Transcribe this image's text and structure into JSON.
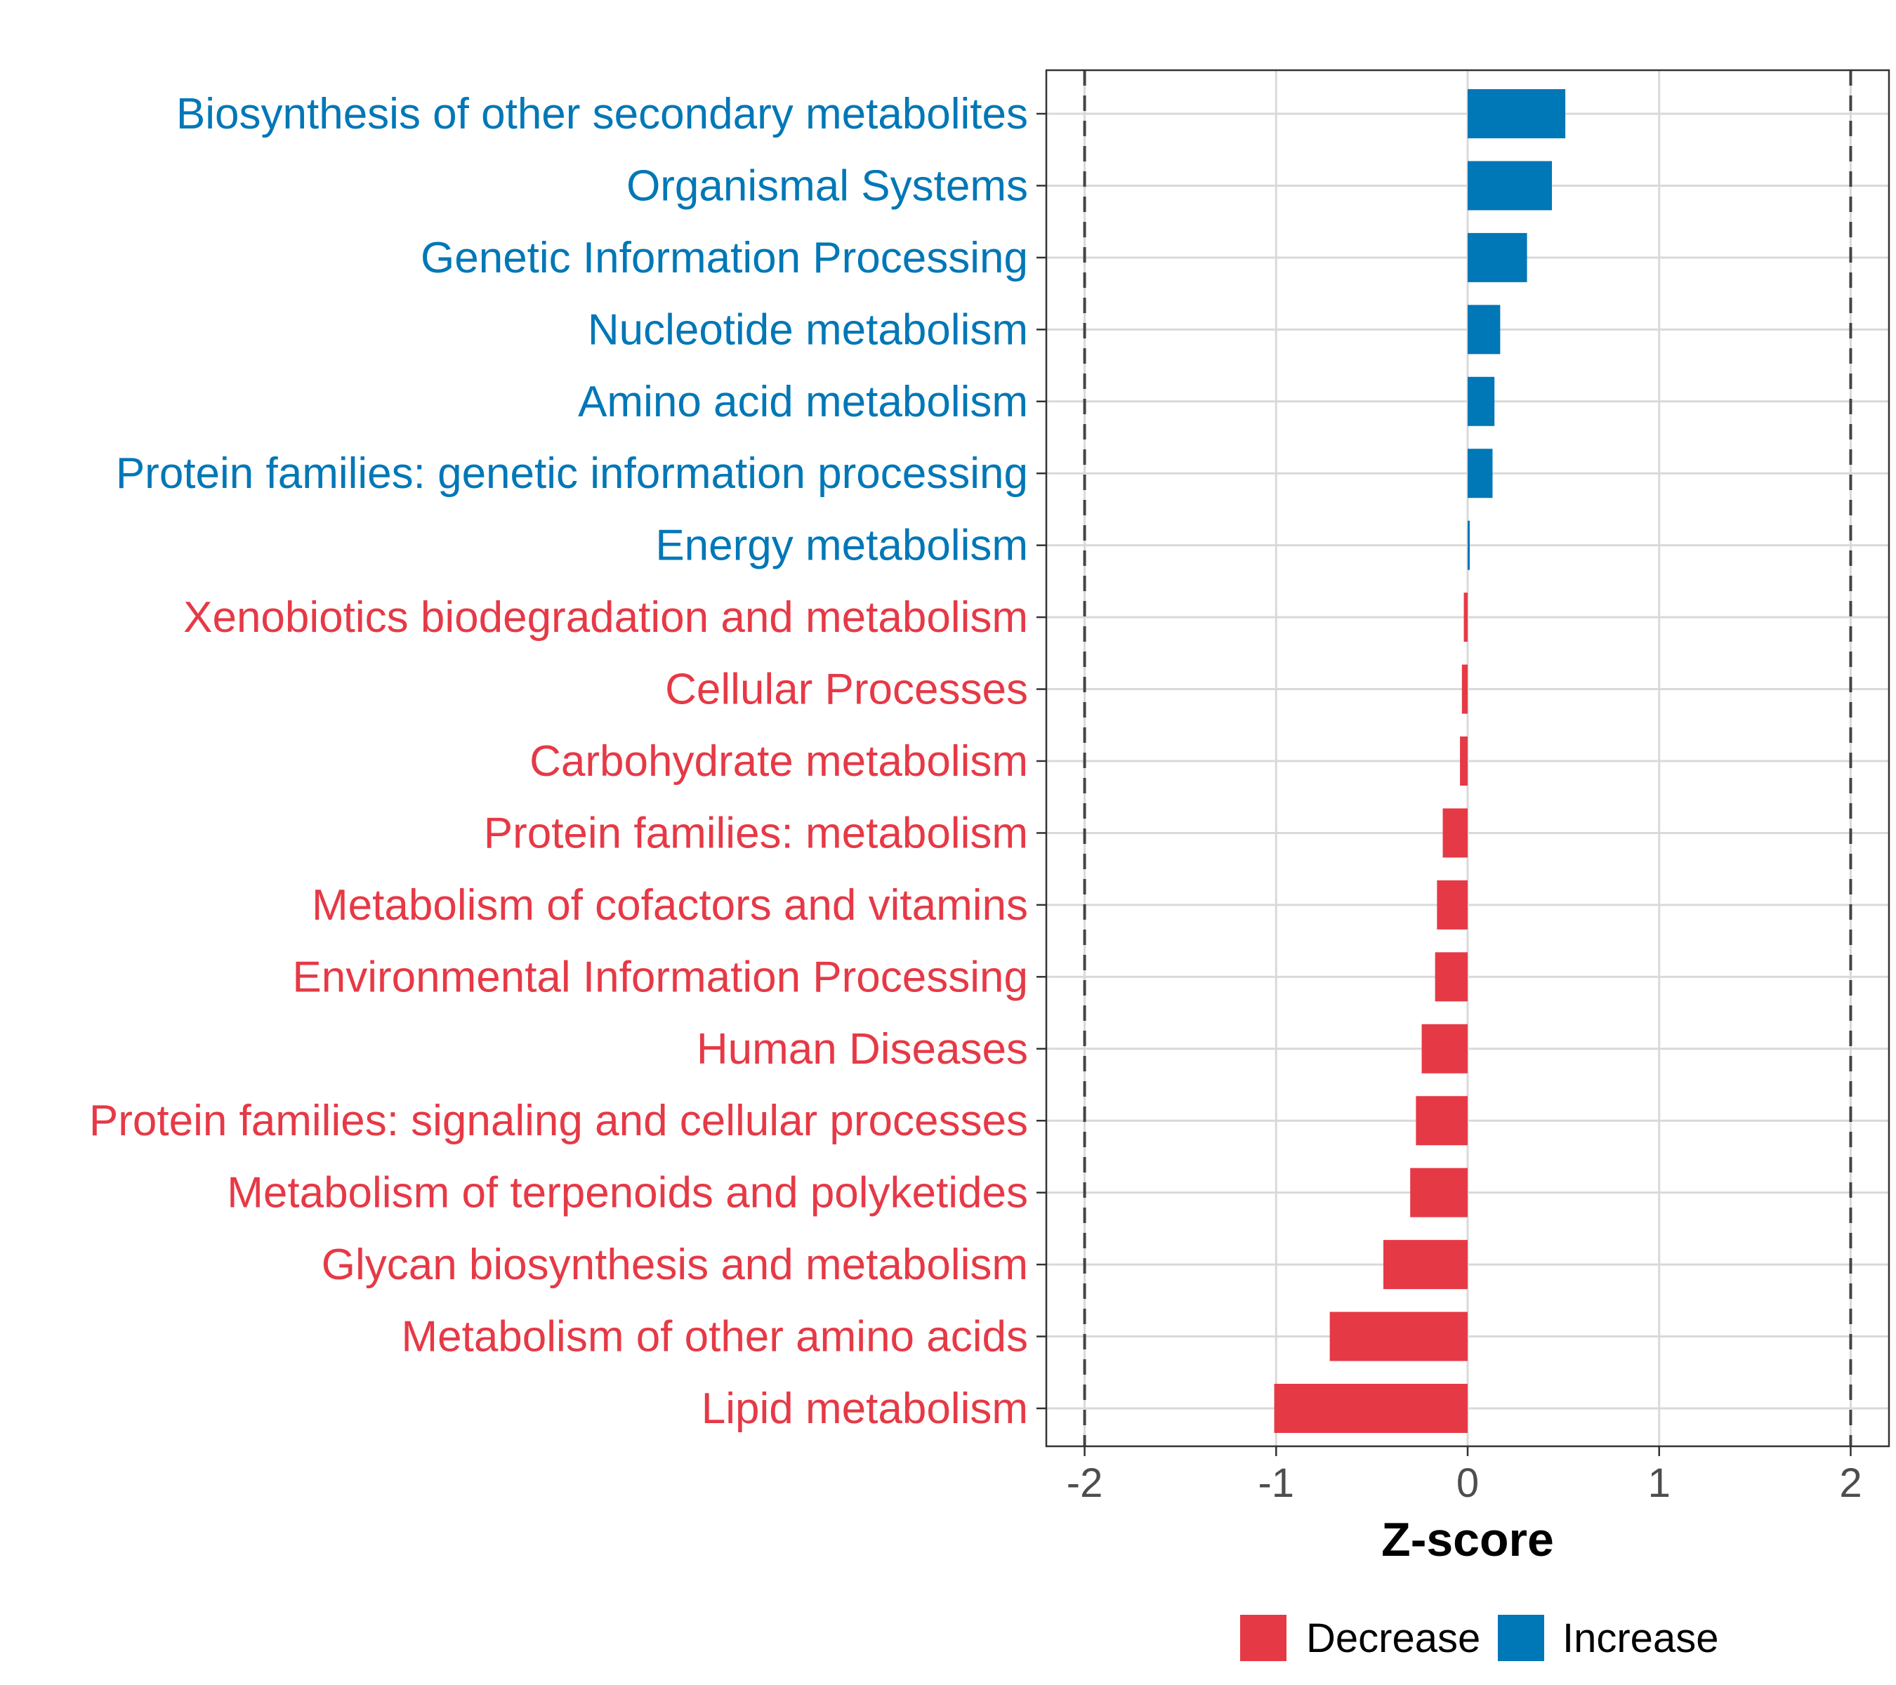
{
  "chart_data": {
    "type": "bar",
    "orientation": "horizontal",
    "xlabel": "Z-score",
    "ylabel": "",
    "xlim": [
      -2.2,
      2.2
    ],
    "xticks": [
      -2,
      -1,
      0,
      1,
      2
    ],
    "tick_labels": [
      "-2",
      "-1",
      "0",
      "1",
      "2"
    ],
    "reference_lines": [
      -2,
      2
    ],
    "grid": true,
    "legend_position": "bottom",
    "categories": [
      "Biosynthesis of other secondary metabolites",
      "Organismal Systems",
      "Genetic Information Processing",
      "Nucleotide metabolism",
      "Amino acid metabolism",
      "Protein families: genetic information processing",
      "Energy metabolism",
      "Xenobiotics biodegradation and metabolism",
      "Cellular Processes",
      "Carbohydrate metabolism",
      "Protein families: metabolism",
      "Metabolism of cofactors and vitamins",
      "Environmental Information Processing",
      "Human Diseases",
      "Protein families: signaling and cellular processes",
      "Metabolism of terpenoids and polyketides",
      "Glycan biosynthesis and metabolism",
      "Metabolism of other amino acids",
      "Lipid metabolism"
    ],
    "values": [
      0.51,
      0.44,
      0.31,
      0.17,
      0.14,
      0.13,
      0.01,
      -0.02,
      -0.03,
      -0.04,
      -0.13,
      -0.16,
      -0.17,
      -0.24,
      -0.27,
      -0.3,
      -0.44,
      -0.72,
      -1.01
    ],
    "groups": [
      "Increase",
      "Increase",
      "Increase",
      "Increase",
      "Increase",
      "Increase",
      "Increase",
      "Decrease",
      "Decrease",
      "Decrease",
      "Decrease",
      "Decrease",
      "Decrease",
      "Decrease",
      "Decrease",
      "Decrease",
      "Decrease",
      "Decrease",
      "Decrease"
    ],
    "legend": [
      {
        "name": "Decrease",
        "color": "#E63946"
      },
      {
        "name": "Increase",
        "color": "#0077B6"
      }
    ]
  }
}
